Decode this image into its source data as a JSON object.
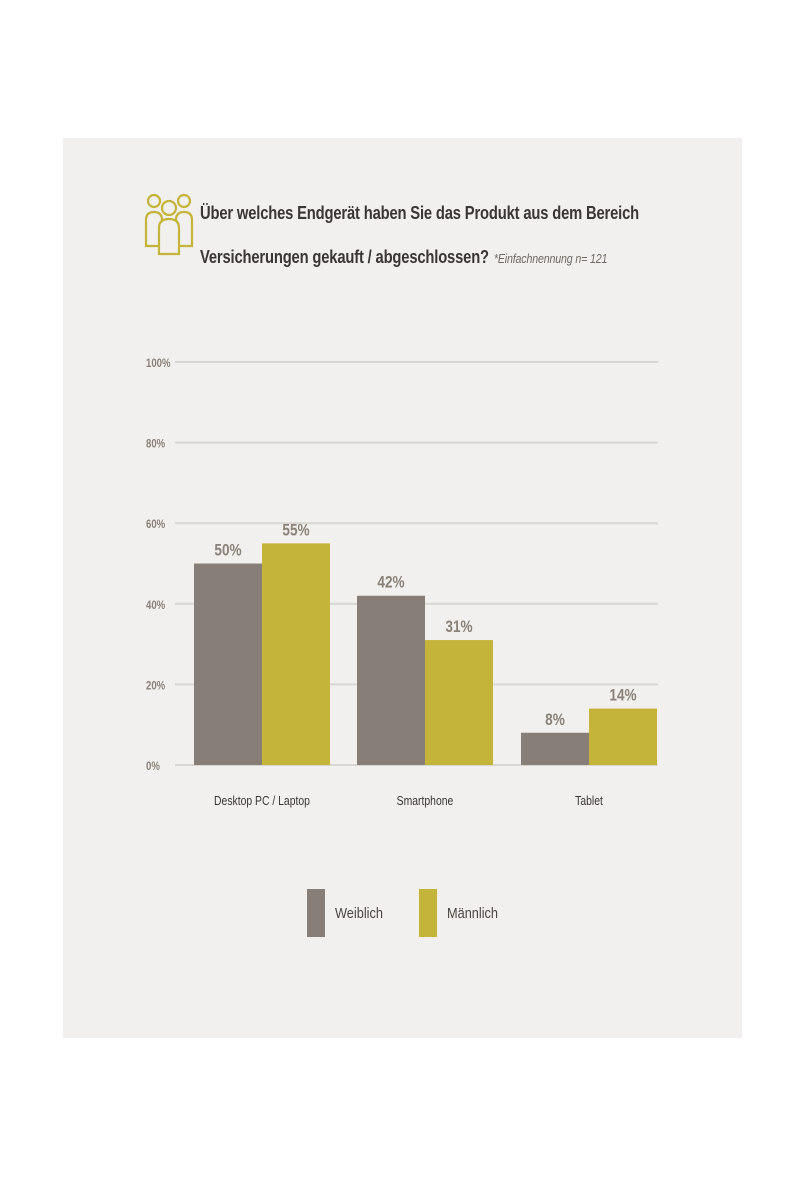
{
  "header": {
    "title_line1": "Über welches Endgerät haben Sie das Produkt aus dem Bereich",
    "title_line2": "Versicherungen gekauft / abgeschlossen?",
    "note": "*Einfachnennung n= 121",
    "icon": "people-group-icon"
  },
  "colors": {
    "panel_bg": "#f1f0ee",
    "weiblich": "#877f77",
    "maennlich": "#c4b43a",
    "value_label": "#8a8178",
    "gridline": "#d8d6d2",
    "tick_text": "#8a8178"
  },
  "chart_data": {
    "type": "bar",
    "categories": [
      "Desktop PC / Laptop",
      "Smartphone",
      "Tablet"
    ],
    "series": [
      {
        "name": "Weiblich",
        "values": [
          50,
          42,
          8
        ],
        "labels": [
          "50%",
          "42%",
          "8%"
        ]
      },
      {
        "name": "Männlich",
        "values": [
          55,
          31,
          14
        ],
        "labels": [
          "55%",
          "31%",
          "14%"
        ]
      }
    ],
    "yticks": [
      "0%",
      "20%",
      "40%",
      "60%",
      "80%",
      "100%"
    ],
    "ylim": [
      0,
      100
    ],
    "grid": true,
    "legend": "bottom"
  },
  "legend": {
    "weiblich_label": "Weiblich",
    "maennlich_label": "Männlich"
  }
}
